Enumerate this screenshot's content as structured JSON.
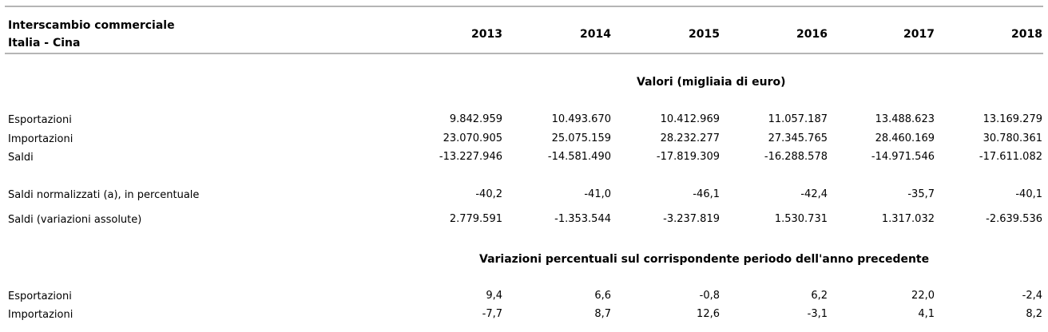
{
  "header": {
    "title_line1": "Interscambio commerciale",
    "title_line2": "Italia - Cina",
    "years": [
      "2013",
      "2014",
      "2015",
      "2016",
      "2017",
      "2018"
    ]
  },
  "section1": {
    "title": "Valori (migliaia di euro)",
    "rows": [
      {
        "label": "Esportazioni",
        "values": [
          "9.842.959",
          "10.493.670",
          "10.412.969",
          "11.057.187",
          "13.488.623",
          "13.169.279"
        ]
      },
      {
        "label": "Importazioni",
        "values": [
          "23.070.905",
          "25.075.159",
          "28.232.277",
          "27.345.765",
          "28.460.169",
          "30.780.361"
        ]
      },
      {
        "label": "Saldi",
        "values": [
          "-13.227.946",
          "-14.581.490",
          "-17.819.309",
          "-16.288.578",
          "-14.971.546",
          "-17.611.082"
        ]
      },
      {
        "label": "Saldi normalizzati (a), in percentuale",
        "values": [
          "-40,2",
          "-41,0",
          "-46,1",
          "-42,4",
          "-35,7",
          "-40,1"
        ]
      },
      {
        "label": "Saldi (variazioni assolute)",
        "values": [
          "2.779.591",
          "-1.353.544",
          "-3.237.819",
          "1.530.731",
          "1.317.032",
          "-2.639.536"
        ]
      }
    ]
  },
  "section2": {
    "title": "Variazioni percentuali sul corrispondente periodo dell'anno precedente",
    "rows": [
      {
        "label": "Esportazioni",
        "values": [
          "9,4",
          "6,6",
          "-0,8",
          "6,2",
          "22,0",
          "-2,4"
        ]
      },
      {
        "label": "Importazioni",
        "values": [
          "-7,7",
          "8,7",
          "12,6",
          "-3,1",
          "4,1",
          "8,2"
        ]
      }
    ]
  }
}
